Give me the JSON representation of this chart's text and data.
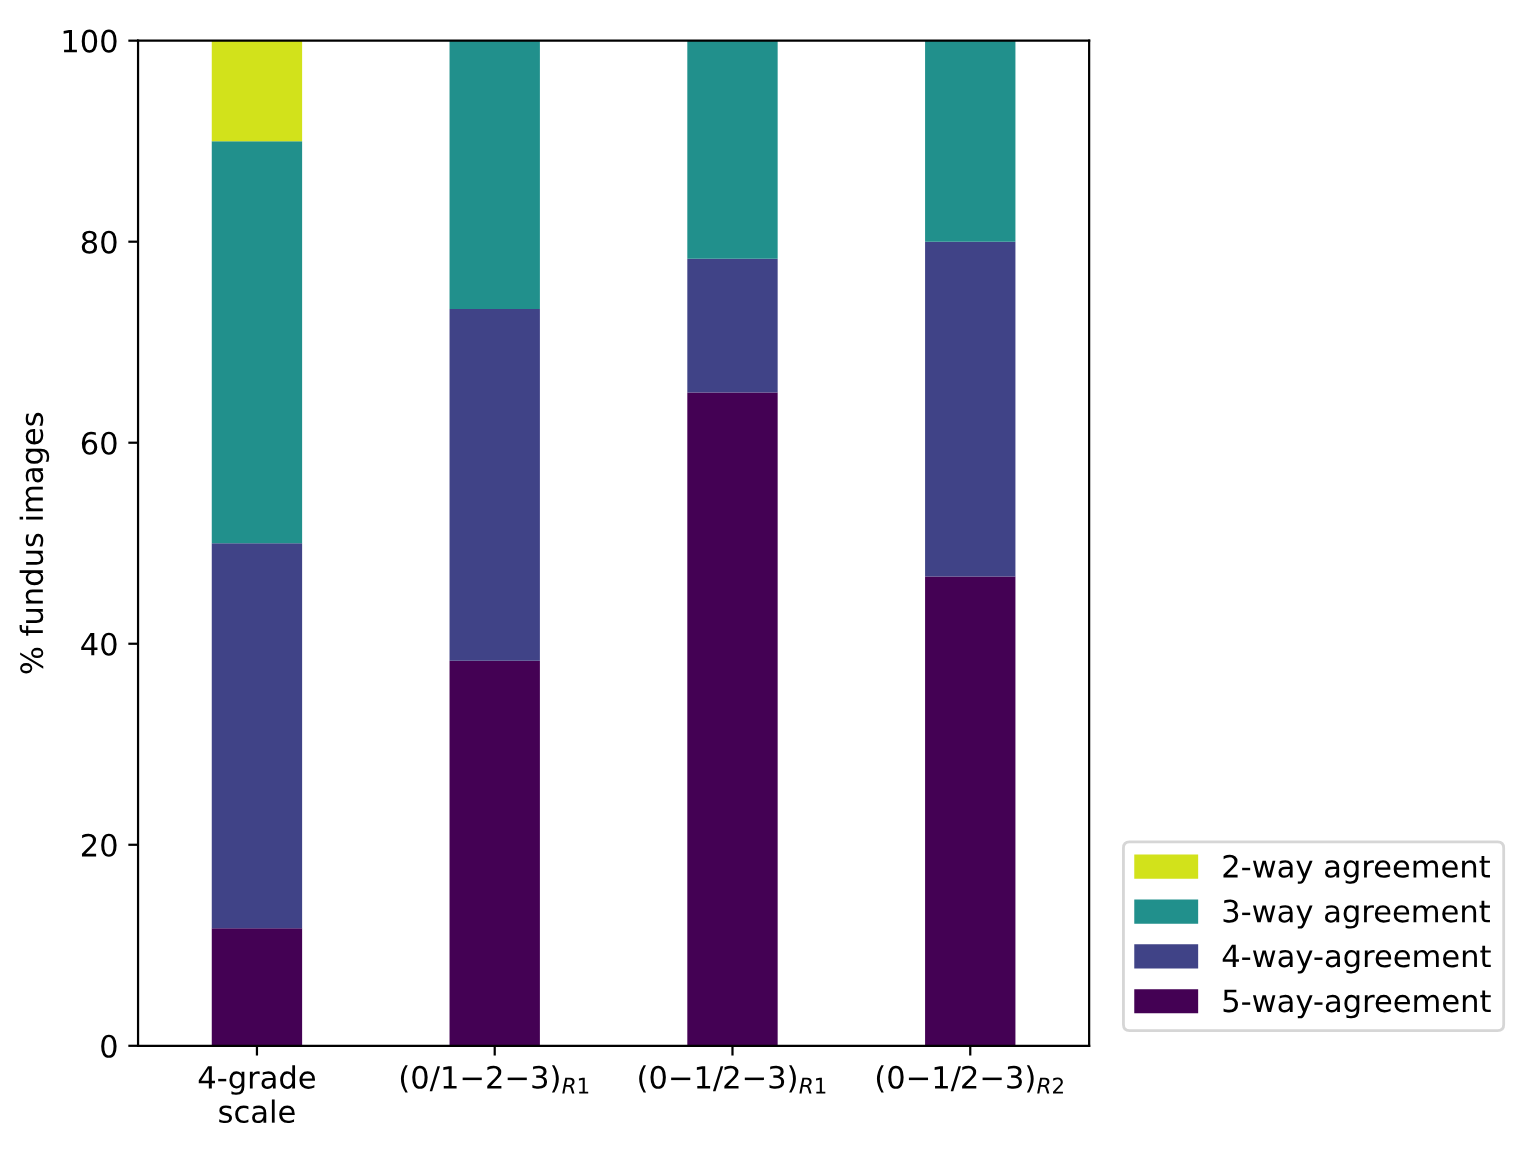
{
  "chart_data": {
    "type": "bar",
    "stacked": true,
    "ylabel": "% fundus images",
    "categories": [
      "4-grade\nscale",
      "(0/1−2−3)$_{R1}$",
      "(0−1/2−3)$_{R1}$",
      "(0−1/2−3)$_{R2}$"
    ],
    "series": [
      {
        "name": "5-way-agreement",
        "color": "#440154",
        "values": [
          11.7,
          38.3,
          65,
          46.7
        ]
      },
      {
        "name": "4-way-agreement",
        "color": "#404387",
        "values": [
          38.3,
          35,
          13.3,
          33.3
        ]
      },
      {
        "name": "3-way agreement",
        "color": "#21908c",
        "values": [
          40,
          26.7,
          21.7,
          20
        ]
      },
      {
        "name": "2-way agreement",
        "color": "#d2e21b",
        "values": [
          10,
          null,
          null,
          null
        ]
      }
    ],
    "ylim": [
      0,
      100
    ],
    "yticks": [
      0,
      20,
      40,
      60,
      80,
      100
    ],
    "grid": false,
    "legend": "right"
  }
}
